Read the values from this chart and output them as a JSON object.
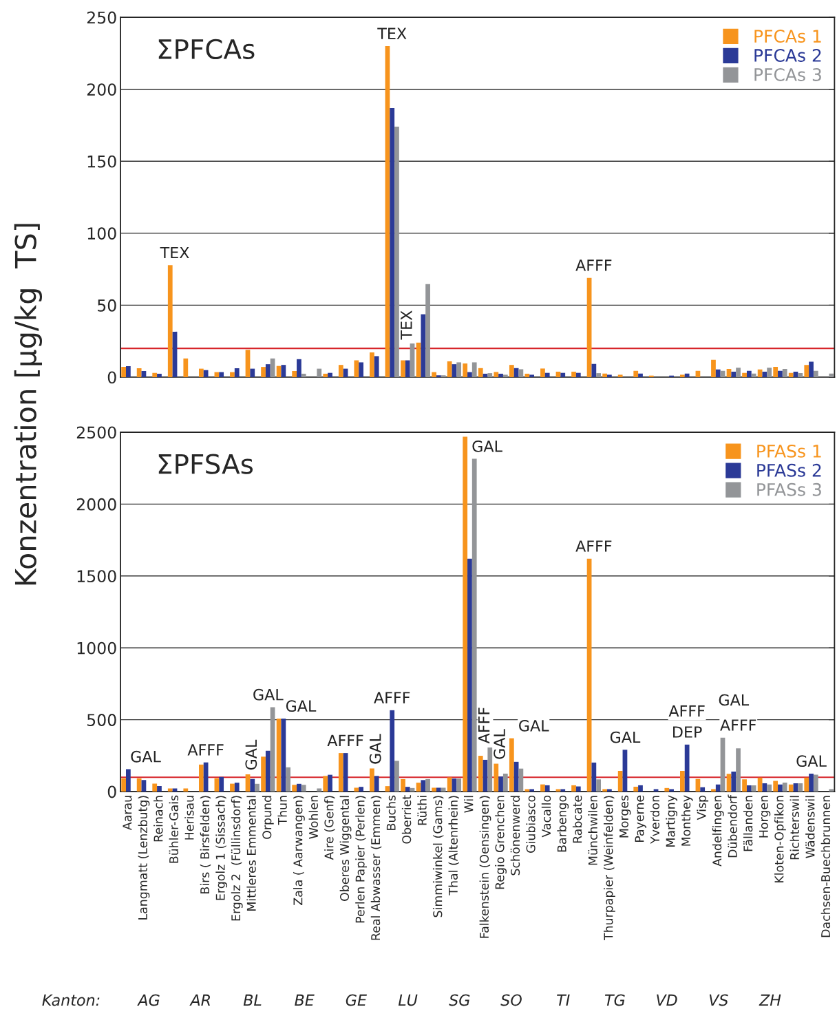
{
  "chart_data": [
    {
      "type": "bar",
      "title": "ΣPFCAs",
      "ylabel": "Konzentration [µg/kg  TS]",
      "categories": [
        "Aarau",
        "Langmatt (Lenzbutg)",
        "Reinach",
        "Bühler-Gais",
        "Herisau",
        "Birs ( Birsfelden)",
        "Ergolz 1 (Sissach)",
        "Ergolz 2  (Füllinsdorf)",
        "Mittleres Emmental",
        "Orpund",
        "Thun",
        "Zala ( Aarwangen)",
        "Wohlen",
        "Aire (Genf)",
        "Oberes Wiggental",
        "Perlen Papier (Perlen)",
        "Real Abwasser (Emmen)",
        "Buchs",
        "Oberriet",
        "Rüthi",
        "Simmiwinkel (Gams)",
        "Thal (Altenrhein)",
        "Wil",
        "Falkenstein (Oensingen)",
        "Regio Grenchen",
        "Schönenwerd",
        "Giubiasco",
        "Vacallo",
        "Barbengo",
        "Rabcate",
        "Münchwilen",
        "Thurpapier (Weinfelden)",
        "Morges",
        "Payerne",
        "Yverdon",
        "Martigny",
        "Monthey",
        "Visp",
        "Andelfingen",
        "Dübendorf",
        "Fällanden",
        "Horgen",
        "Kloten-Opfikon",
        "Richterswil",
        "Wädenswil",
        "Dachsen-Buechbrunnen"
      ],
      "series": [
        {
          "name": "PFCAs 1",
          "color": "#f7941d",
          "values": [
            7.1,
            6.2,
            3,
            77.8,
            13,
            5.9,
            3.5,
            3.5,
            19,
            7.1,
            7.8,
            4.3,
            null,
            2.4,
            8.5,
            11.7,
            17.2,
            230,
            11.7,
            24,
            3.5,
            11,
            9.5,
            6.3,
            3.6,
            8.5,
            2.4,
            6,
            3.8,
            3.8,
            69,
            2.5,
            1.7,
            4.4,
            1.1,
            null,
            1.7,
            4.4,
            12,
            5.7,
            3,
            5.4,
            7.1,
            3,
            8.5,
            null
          ]
        },
        {
          "name": "PFCAs 2",
          "color": "#2b3a97",
          "values": [
            7.6,
            4.3,
            2.4,
            31.6,
            null,
            4.9,
            3.5,
            6.2,
            5.9,
            9,
            8.5,
            12.5,
            null,
            3,
            5.9,
            10.3,
            14.6,
            187,
            11.7,
            43.7,
            1.3,
            9,
            3.5,
            2.4,
            2.4,
            6.3,
            1.7,
            3,
            3,
            3,
            9.2,
            1.7,
            null,
            2.5,
            null,
            1.1,
            2.5,
            null,
            5.4,
            3.8,
            4.4,
            3.8,
            4.4,
            3.8,
            10.8,
            null
          ]
        },
        {
          "name": "PFCAs 3",
          "color": "#939598",
          "values": [
            null,
            null,
            null,
            null,
            null,
            null,
            null,
            null,
            null,
            13,
            null,
            2.4,
            5.9,
            null,
            null,
            null,
            null,
            174,
            23.4,
            64.6,
            1.3,
            10.3,
            10.3,
            2.8,
            1.7,
            5.5,
            null,
            null,
            null,
            null,
            2.8,
            null,
            null,
            null,
            null,
            null,
            null,
            null,
            4.4,
            6.6,
            2.5,
            6.6,
            5.7,
            2.8,
            4.4,
            2.5
          ]
        }
      ],
      "ylim": [
        0,
        250
      ],
      "yticks": [
        0,
        50,
        100,
        150,
        200,
        250
      ],
      "grid": "y",
      "legend": "top right",
      "tick_labels": "y",
      "ref_lines": [
        {
          "axis": "y",
          "value": 20,
          "color": "#d7262b"
        }
      ],
      "annotations": [
        {
          "text": "TEX",
          "x": "Bühler-Gais",
          "y": 77.8
        },
        {
          "text": "TEX",
          "x": "Buchs",
          "y": 230
        },
        {
          "text": "TEX",
          "x": "Oberriet",
          "y": 23.4
        },
        {
          "text": "AFFF",
          "x": "Münchwilen",
          "y": 69
        }
      ]
    },
    {
      "type": "bar",
      "title": "ΣPFSAs",
      "categories": [
        "Aarau",
        "Langmatt (Lenzbutg)",
        "Reinach",
        "Bühler-Gais",
        "Herisau",
        "Birs ( Birsfelden)",
        "Ergolz 1 (Sissach)",
        "Ergolz 2  (Füllinsdorf)",
        "Mittleres Emmental",
        "Orpund",
        "Thun",
        "Zala ( Aarwangen)",
        "Wohlen",
        "Aire (Genf)",
        "Oberes Wiggental",
        "Perlen Papier (Perlen)",
        "Real Abwasser (Emmen)",
        "Buchs",
        "Oberriet",
        "Rüthi",
        "Simmiwinkel (Gams)",
        "Thal (Altenrhein)",
        "Wil",
        "Falkenstein (Oensingen)",
        "Regio Grenchen",
        "Schönenwerd",
        "Giubiasco",
        "Vacallo",
        "Barbengo",
        "Rabcate",
        "Münchwilen",
        "Thurpapier (Weinfelden)",
        "Morges",
        "Payerne",
        "Yverdon",
        "Martigny",
        "Monthey",
        "Visp",
        "Andelfingen",
        "Dübendorf",
        "Fällanden",
        "Horgen",
        "Kloten-Opfikon",
        "Richterswil",
        "Wädenswil",
        "Dachsen-Buechbrunnen"
      ],
      "series": [
        {
          "name": "PFASs 1",
          "color": "#f7941d",
          "values": [
            93,
            93,
            55,
            22,
            22,
            188,
            93,
            55,
            120,
            243,
            508,
            47,
            null,
            109,
            268,
            27,
            161,
            38,
            87,
            62,
            27,
            99,
            2469,
            249,
            194,
            371,
            17,
            50,
            17,
            44,
            1620,
            17,
            144,
            34,
            null,
            25,
            144,
            88,
            17,
            124,
            85,
            97,
            75,
            50,
            97,
            null
          ]
        },
        {
          "name": "PFASs 2",
          "color": "#2b3a97",
          "values": [
            156,
            80,
            39,
            22,
            null,
            203,
            102,
            62,
            88,
            284,
            508,
            54,
            null,
            117,
            268,
            33,
            109,
            566,
            33,
            80,
            27,
            91,
            1620,
            221,
            105,
            207,
            17,
            44,
            17,
            36,
            202,
            17,
            291,
            44,
            17,
            17,
            327,
            30,
            50,
            139,
            44,
            58,
            50,
            58,
            125,
            null
          ]
        },
        {
          "name": "PFASs 3",
          "color": "#939598",
          "values": [
            null,
            null,
            null,
            null,
            null,
            null,
            null,
            null,
            54,
            587,
            169,
            47,
            22,
            null,
            null,
            null,
            null,
            214,
            25,
            87,
            27,
            91,
            2315,
            307,
            125,
            160,
            null,
            null,
            null,
            null,
            85,
            null,
            null,
            null,
            null,
            null,
            null,
            null,
            375,
            301,
            44,
            50,
            63,
            58,
            118,
            17
          ]
        }
      ],
      "ylim": [
        0,
        2500
      ],
      "yticks": [
        0,
        500,
        1000,
        1500,
        2000,
        2500
      ],
      "grid": "y",
      "legend": "top right",
      "ref_lines": [
        {
          "axis": "y",
          "value": 100,
          "color": "#d7262b"
        }
      ],
      "annotations": [
        {
          "text": "GAL",
          "x": "Aarau",
          "y": 156
        },
        {
          "text": "AFFF",
          "x": "Birs ( Birsfelden)",
          "y": 203
        },
        {
          "text": "GAL",
          "x": "Mittleres Emmental",
          "y": 120
        },
        {
          "text": "GAL",
          "x": "Orpund",
          "y": 587
        },
        {
          "text": "GAL",
          "x": "Thun",
          "y": 508
        },
        {
          "text": "AFFF",
          "x": "Oberes Wiggental",
          "y": 268
        },
        {
          "text": "GAL",
          "x": "Real Abwasser (Emmen)",
          "y": 161
        },
        {
          "text": "AFFF",
          "x": "Buchs",
          "y": 566
        },
        {
          "text": "GAL",
          "x": "Wil",
          "y": 2315
        },
        {
          "text": "AFFF",
          "x": "Falkenstein (Oensingen)",
          "y": 307
        },
        {
          "text": "GAL",
          "x": "Regio Grenchen",
          "y": 194
        },
        {
          "text": "GAL",
          "x": "Schönenwerd",
          "y": 371
        },
        {
          "text": "AFFF",
          "x": "Münchwilen",
          "y": 1620
        },
        {
          "text": "GAL",
          "x": "Morges",
          "y": 291
        },
        {
          "text": "DEP",
          "x": "Monthey",
          "y": 327
        },
        {
          "text": "AFFF",
          "x": "Monthey",
          "y": 327
        },
        {
          "text": "AFFF",
          "x": "Andelfingen",
          "y": 375
        },
        {
          "text": "GAL",
          "x": "Dübendorf",
          "y": 301
        },
        {
          "text": "GAL",
          "x": "Wädenswil",
          "y": 125
        },
        "Kanton:",
        "AG",
        "AR",
        "BL",
        "BE",
        "GE",
        "LU",
        "SG",
        "SO",
        "TI",
        "TG",
        "VD",
        "VS",
        "ZH"
      ]
    }
  ]
}
